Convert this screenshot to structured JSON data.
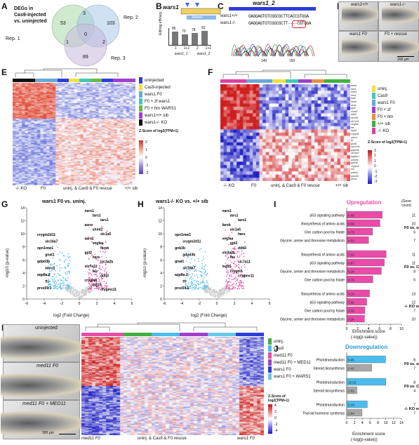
{
  "panels": {
    "A": "A",
    "B": "B",
    "C": "C",
    "D": "D",
    "E": "E",
    "F": "F",
    "G": "G",
    "H": "H",
    "I": "I",
    "J": "J",
    "K": "K"
  },
  "venn": {
    "title_line1": "DEGs in",
    "title_line2": "Cas9-injected",
    "title_line3": "vs. uninjected",
    "rep1": "Rep. 1",
    "rep2": "Rep. 2",
    "rep3": "Rep. 3",
    "n_1only": "53",
    "n_2only": "103",
    "n_3only": "89",
    "n_12": "3",
    "n_13": "1",
    "n_23": "2",
    "n_123": "0",
    "colors": {
      "rep1": "#a8d8a8",
      "rep2": "#a8c8e8",
      "rep3": "#c8b8dc"
    }
  },
  "B": {
    "gene": "wars1",
    "domain": "kinase",
    "ylabel": "Editing efficacy",
    "values": [
      "86",
      "70",
      "78",
      "93"
    ],
    "fills": [
      0.86,
      0.7,
      0.78,
      0.93
    ],
    "xticks": [
      "1",
      "1+2",
      "2",
      "1+2"
    ],
    "groups": [
      "wars1_1",
      "wars1_2"
    ]
  },
  "C": {
    "title": "wars1_2",
    "wt_label": "wars1+/+",
    "ko_label": "wars1-/-",
    "wt_seq": "GAGGAGTGTCGGCGCTTCACCGTGGA",
    "ko_seq": "GAGGAGTGTCGGCGCTT----CGTGGA",
    "pos1": "140",
    "pos2": "150"
  },
  "D": {
    "wt": "wars1+/+",
    "ko": "wars1-/-",
    "f0": "wars1 F0",
    "rescue": "F0 + rescue",
    "scale": "200 μm"
  },
  "E": {
    "legend": [
      {
        "label": "uninjected",
        "color": "#2b3fd6"
      },
      {
        "label": "Cas9-injected",
        "color": "#f0e040"
      },
      {
        "label": "wars1 F0",
        "color": "#6aa8d8"
      },
      {
        "label": "F0 + zf wars1",
        "color": "#40c8b8"
      },
      {
        "label": "F0 + hm WARS1",
        "color": "#6ab84a"
      },
      {
        "label": "wars1+/+ sib",
        "color": "#a040c8"
      },
      {
        "label": "wars1-/- KO",
        "color": "#111111"
      }
    ],
    "zscore_title": "Z-Score of log2(TPM+1)",
    "zticks": [
      "2",
      "1",
      "0",
      "-1",
      "-2"
    ],
    "xgroups": [
      "-/- KO",
      "F0",
      "uninj. & Cas9 & F0 rescue",
      "+/+ sib"
    ]
  },
  "F": {
    "legend": [
      {
        "label": "uninj.",
        "color": "#f0e040"
      },
      {
        "label": "Cas9",
        "color": "#40c8b8"
      },
      {
        "label": "wars1 F0",
        "color": "#6aa8d8"
      },
      {
        "label": "F0 + zf",
        "color": "#a040c8"
      },
      {
        "label": "F0 + hm",
        "color": "#e89040"
      },
      {
        "label": "+/+ sib",
        "color": "#40b040"
      },
      {
        "label": "-/- KO",
        "color": "#e040a0"
      }
    ],
    "zscore_title": "Z-Score of log2(TPM+1)",
    "zticks": [
      "3",
      "2",
      "1",
      "0",
      "-1",
      "-2",
      "-3"
    ],
    "xgroups": [
      "-/- KO",
      "F0",
      "uninj. & Cas9 & F0 rescue",
      "+/+ sib"
    ]
  },
  "G": {
    "title": "wars1 F0 vs. uninj.",
    "xlabel": "log2 (Fold Change)",
    "ylabel": "-log10 (p-value)",
    "xticks": [
      "-6",
      "-4",
      "-2",
      "0",
      "2",
      "4",
      "6"
    ],
    "yticks": [
      "0",
      "2",
      "4",
      "6",
      "8",
      "10",
      "12",
      "14"
    ],
    "genes_up": [
      "nars1",
      "tars1",
      "iars1",
      "asns",
      "shmt2",
      "slc1a5",
      "aars1",
      "vegfaa",
      "farsb",
      "gpt2",
      "hars",
      "slc3a2b",
      "slc7a11",
      "fas",
      "ddit3",
      "crygm5",
      "isg15",
      "crygmx11"
    ],
    "genes_down": [
      "crygm2d11",
      "slc16a7",
      "opn1mw1",
      "gnat1",
      "gdpd3b",
      "wars1",
      "aqp8a.2",
      "ttr",
      "prss59.1"
    ]
  },
  "H": {
    "title": "wars1-/- KO vs. +/+ sib",
    "xlabel": "log2 (Fold Change)",
    "ylabel": "-log10 (p-value)",
    "xticks": [
      "-6",
      "-4",
      "-2",
      "0",
      "2",
      "4",
      "6"
    ],
    "yticks": [
      "0",
      "2",
      "4",
      "6",
      "8",
      "10",
      "12",
      "14"
    ],
    "genes_up": [
      "nars1",
      "iars1",
      "tars1",
      "farsb",
      "slc1a5",
      "hars",
      "vegfaa",
      "gpt2",
      "ddit3",
      "slc3a2b",
      "fas",
      "slc7a11",
      "isg15",
      "crygm5",
      "crygmx11"
    ],
    "genes_down": [
      "opn1mw1",
      "crygm2d11",
      "gnb3b",
      "gdpd3b",
      "gnat1",
      "slc16a7",
      "aqp8a.2",
      "ttr",
      "prss59.1"
    ]
  },
  "I": {
    "title": "Upregulation",
    "gene_count": "(Gene count)",
    "xlabel": "Enrichment score",
    "xlabel2": "(-log(p-value))",
    "xticks": [
      "0",
      "2",
      "4",
      "6",
      "8",
      "10"
    ],
    "color": "#e84ca8",
    "groups": [
      {
        "label": "F0 vs. uninj.",
        "rows": [
          {
            "term": "p53 signaling pathway",
            "value": 6.49,
            "count": "11"
          },
          {
            "term": "Biosynthesis of amino acids",
            "value": 6.08,
            "count": "10"
          },
          {
            "term": "One carbon pool by folate",
            "value": 4.73,
            "count": "6"
          },
          {
            "term": "Glycine, serine and threonine metabolism",
            "value": 4.01,
            "count": "7"
          }
        ]
      },
      {
        "label": "F0 vs. Cas9",
        "rows": [
          {
            "term": "Biosynthesis of amino acids",
            "value": 7.22,
            "count": "11"
          },
          {
            "term": "p53 signaling pathway",
            "value": 6.87,
            "count": "11"
          },
          {
            "term": "Glycine, serine and threonine metabolism",
            "value": 6.34,
            "count": "8"
          },
          {
            "term": "One carbon pool by folate",
            "value": 4.79,
            "count": "6"
          }
        ]
      },
      {
        "label": "-/- KO vs. +/+ sib",
        "rows": [
          {
            "term": "Biosynthesis of amino acids",
            "value": 4.18,
            "count": "13"
          },
          {
            "term": "p53 signaling pathway",
            "value": 3.66,
            "count": "12"
          },
          {
            "term": "One carbon pool by folate",
            "value": 3.33,
            "count": "7"
          },
          {
            "term": "Glycine, serine and threonine metabolism",
            "value": 3.26,
            "count": "10"
          }
        ]
      }
    ],
    "labels": [
      "6.49",
      "6.08",
      "4.73",
      "4.01",
      "7.22",
      "6.87",
      "6.34",
      "4.79",
      "4.18",
      "3.66",
      "3.33",
      "3.26"
    ]
  },
  "J": {
    "title": "Downregulation",
    "xlabel": "Enrichment score",
    "xlabel2": "(-log(p-value))",
    "xticks": [
      "0",
      "2",
      "4",
      "6",
      "8",
      "10",
      "12",
      "14"
    ],
    "color": "#4cbcec",
    "color2": "#a8a8a8",
    "groups": [
      {
        "label": "F0 vs. uninj.",
        "rows": [
          {
            "term": "Phototransduction",
            "value": 9.95,
            "count": "8"
          },
          {
            "term": "Steroid biosynthesis",
            "value": 6.42,
            "count": "7"
          }
        ]
      },
      {
        "label": "F0 vs. Cas9",
        "rows": [
          {
            "term": "Phototransduction",
            "value": 10.03,
            "count": "8"
          },
          {
            "term": "Steroid biosynthesis",
            "value": 2.62,
            "count": "4"
          }
        ]
      },
      {
        "label": "-/- KO vs. +/+ sib",
        "rows": [
          {
            "term": "Phototransduction",
            "value": 5.29,
            "count": "7"
          },
          {
            "term": "Thyroid hormone synthesis",
            "value": 3.94,
            "count": "7"
          }
        ]
      }
    ],
    "labels": [
      "9.95",
      "6.42",
      "10.03",
      "2.62",
      "5.29",
      "3.94"
    ]
  },
  "K": {
    "uninjected": "uninjected",
    "med11": "med11 F0",
    "med11_rescue": "med11 F0 + MED11",
    "scale": "300 μm",
    "legend": [
      {
        "label": "uninj.",
        "color": "#40b040"
      },
      {
        "label": "Cas9",
        "color": "#4cbcec"
      },
      {
        "label": "med11 F0",
        "color": "#e84ca8"
      },
      {
        "label": "med11 F0 + MED11",
        "color": "#a040c8"
      },
      {
        "label": "wars1 F0",
        "color": "#2b3fd6"
      },
      {
        "label": "wars1 F0 + WARS1",
        "color": "#6ac8e8"
      }
    ],
    "zscore_title": "Z-Score of log2(TPM+1)",
    "zticks": [
      "4",
      "2",
      "0",
      "-2",
      "-4"
    ],
    "xgroups": [
      "med11 F0",
      "uninj. & Cas9 & F0 rescue",
      "wars1 F0"
    ]
  }
}
